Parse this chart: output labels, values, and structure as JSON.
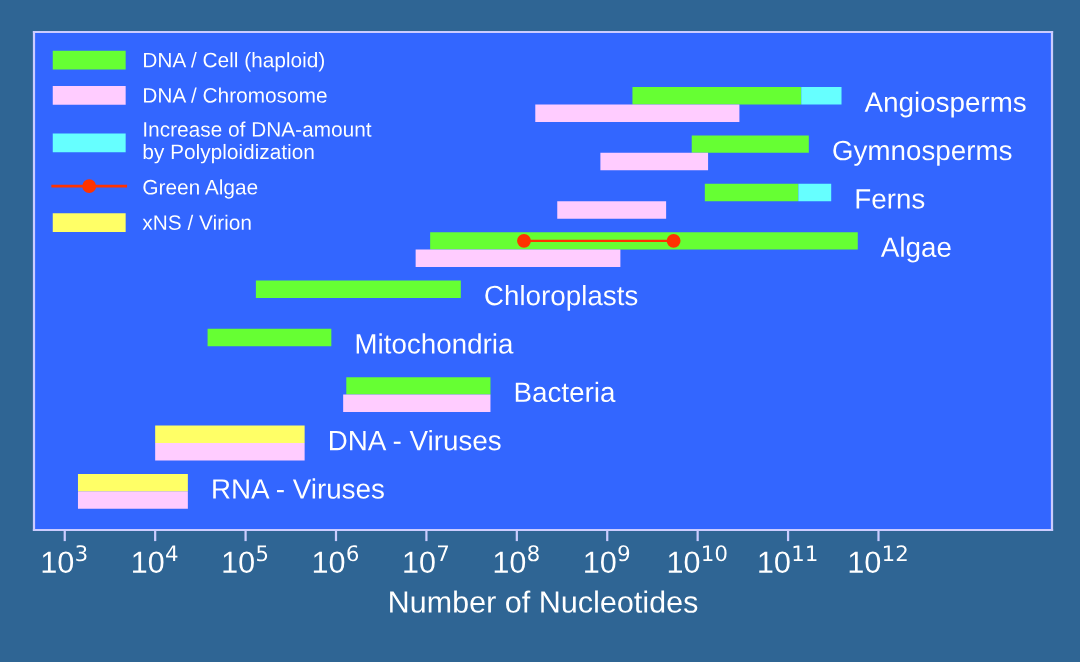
{
  "chart_data": {
    "type": "bar",
    "orientation": "horizontal",
    "xlabel": "Number of Nucleotides",
    "categories": [
      "Angiosperms",
      "Gymnosperms",
      "Ferns",
      "Algae",
      "Chloroplasts",
      "Mitochondria",
      "Bacteria",
      "DNA - Viruses",
      "RNA - Viruses"
    ],
    "series": [
      {
        "name": "DNA / Cell (haploid)",
        "color": "#66ff33",
        "base": [
          1900000000.0,
          8600000000.0,
          12000000000.0,
          11000000.0,
          130000.0,
          38000.0,
          1300000.0,
          null,
          null
        ],
        "values": [
          138000000000.0,
          161000000000.0,
          118000000000.0,
          590000000000.0,
          23900000.0,
          850000.0,
          49800000.0,
          null,
          null
        ]
      },
      {
        "name": "DNA / Chromosome",
        "color": "#ffccff",
        "base": [
          160000000.0,
          840000000.0,
          280000000.0,
          7600000.0,
          null,
          null,
          1200000.0,
          10000.0,
          1400.0
        ],
        "values": [
          28800000000.0,
          12200000000.0,
          4200000000.0,
          1390000000.0,
          null,
          null,
          49900000.0,
          440000.0,
          21600.0
        ]
      },
      {
        "name": "Increase of DNA-amount\nby Polyploidization",
        "color": "#66ffff",
        "base": [
          140000000000.0,
          null,
          130000000000.0,
          null,
          null,
          null,
          null,
          null,
          null
        ],
        "values": [
          250000000000.0,
          null,
          170000000000.0,
          null,
          null,
          null,
          null,
          null,
          null
        ]
      },
      {
        "name": "Green Algae",
        "line_style": "solid",
        "marker": "circle",
        "color": "#ff3300",
        "base": [
          null,
          null,
          null,
          120000000.0,
          null,
          null,
          null,
          null,
          null
        ],
        "values": [
          null,
          null,
          null,
          5300000000.0,
          null,
          null,
          null,
          null,
          null
        ]
      },
      {
        "name": "xNS / Virion",
        "color": "#ffff66",
        "base": [
          null,
          null,
          null,
          null,
          null,
          null,
          null,
          10000.0,
          1400.0
        ],
        "values": [
          null,
          null,
          null,
          null,
          null,
          null,
          null,
          440000.0,
          21600.0
        ]
      }
    ],
    "log": "x",
    "xlim": [
      457,
      83000000000000.0
    ],
    "xticks": [
      {
        "value": 1000,
        "label": "10$^{3}$"
      },
      {
        "value": 10000,
        "label": "10$^{4}$"
      },
      {
        "value": 100000,
        "label": "10$^{5}$"
      },
      {
        "value": 1000000,
        "label": "10$^{6}$"
      },
      {
        "value": 10000000,
        "label": "10$^{7}$"
      },
      {
        "value": 100000000,
        "label": "10$^{8}$"
      },
      {
        "value": 1000000000,
        "label": "10$^{9}$"
      },
      {
        "value": 10000000000,
        "label": "10$^{10}$"
      },
      {
        "value": 100000000000,
        "label": "10$^{11}$"
      },
      {
        "value": 1000000000000,
        "label": "10$^{12}$"
      }
    ],
    "tick_labels": "x",
    "grid": false,
    "legend": "top left"
  }
}
